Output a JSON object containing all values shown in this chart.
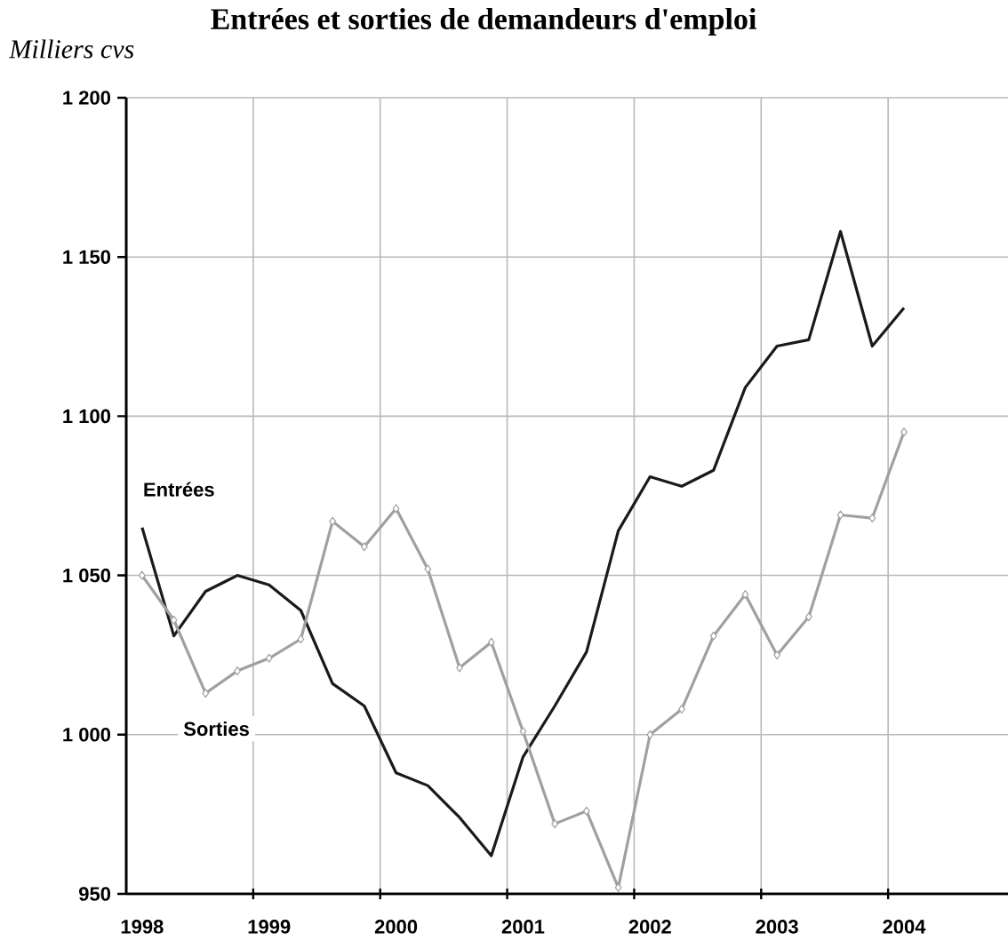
{
  "chart_data": {
    "type": "line",
    "title": "Entrées et sorties de demandeurs d'emploi",
    "ylabel": "Milliers cvs",
    "x": [
      1998.125,
      1998.375,
      1998.625,
      1998.875,
      1999.125,
      1999.375,
      1999.625,
      1999.875,
      2000.125,
      2000.375,
      2000.625,
      2000.875,
      2001.125,
      2001.375,
      2001.625,
      2001.875,
      2002.125,
      2002.375,
      2002.625,
      2002.875,
      2003.125,
      2003.375,
      2003.625,
      2003.875,
      2004.125
    ],
    "series": [
      {
        "name": "Entrées",
        "color": "#1a1a1a",
        "marker": "none",
        "values": [
          1065,
          1031,
          1045,
          1050,
          1047,
          1039,
          1016,
          1009,
          988,
          984,
          974,
          962,
          993,
          1009,
          1026,
          1064,
          1081,
          1078,
          1083,
          1109,
          1122,
          1124,
          1158,
          1122,
          1134
        ]
      },
      {
        "name": "Sorties",
        "color": "#a0a0a0",
        "marker": "diamond",
        "values": [
          1050,
          1036,
          1013,
          1020,
          1024,
          1030,
          1067,
          1059,
          1071,
          1052,
          1021,
          1029,
          1001,
          972,
          976,
          952,
          1000,
          1008,
          1031,
          1044,
          1025,
          1037,
          1069,
          1068,
          1095
        ]
      }
    ],
    "xlim": [
      1998,
      2005
    ],
    "xticks": [
      {
        "value": 1998.125,
        "label": "1998"
      },
      {
        "value": 1999.125,
        "label": "1999"
      },
      {
        "value": 2000.125,
        "label": "2000"
      },
      {
        "value": 2001.125,
        "label": "2001"
      },
      {
        "value": 2002.125,
        "label": "2002"
      },
      {
        "value": 2003.125,
        "label": "2003"
      },
      {
        "value": 2004.125,
        "label": "2004"
      },
      {
        "value": 1999,
        "label": null
      },
      {
        "value": 2000,
        "label": null
      },
      {
        "value": 2001,
        "label": null
      },
      {
        "value": 2002,
        "label": null
      },
      {
        "value": 2003,
        "label": null
      },
      {
        "value": 2004,
        "label": null
      }
    ],
    "ylim": [
      950,
      1200
    ],
    "yticks": [
      {
        "value": 950,
        "label": "950"
      },
      {
        "value": 1000,
        "label": "1 000"
      },
      {
        "value": 1050,
        "label": "1 050"
      },
      {
        "value": 1100,
        "label": "1 100"
      },
      {
        "value": 1150,
        "label": "1 150"
      },
      {
        "value": 1200,
        "label": "1 200"
      }
    ],
    "grid": true,
    "legend": false
  }
}
